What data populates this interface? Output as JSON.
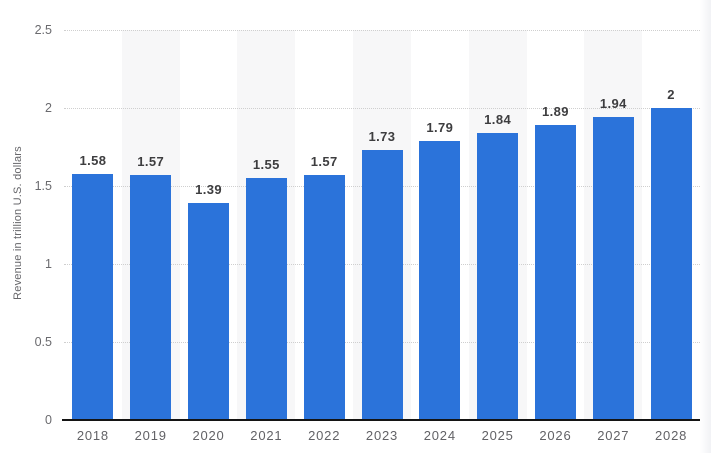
{
  "chart_data": {
    "type": "bar",
    "title": "",
    "xlabel": "",
    "ylabel": "Revenue in trillion U.S. dollars",
    "categories": [
      "2018",
      "2019",
      "2020",
      "2021",
      "2022",
      "2023",
      "2024",
      "2025",
      "2026",
      "2027",
      "2028"
    ],
    "values": [
      1.58,
      1.57,
      1.39,
      1.55,
      1.57,
      1.73,
      1.79,
      1.84,
      1.89,
      1.94,
      2
    ],
    "value_labels": [
      "1.58",
      "1.57",
      "1.39",
      "1.55",
      "1.57",
      "1.73",
      "1.79",
      "1.84",
      "1.89",
      "1.94",
      "2"
    ],
    "ylim": [
      0,
      2.5
    ],
    "yticks": [
      0,
      0.5,
      1,
      1.5,
      2,
      2.5
    ],
    "ytick_labels": [
      "0",
      "0.5",
      "1",
      "1.5",
      "2",
      "2.5"
    ],
    "grid": "horizontal dotted gridlines at each y tick",
    "legend": "none",
    "plot_bands": "alternating light-gray vertical column bands behind odd columns (2019, 2021, 2023, 2025, 2027)",
    "colors": {
      "bar": "#2b73da",
      "column_band": "#f7f7f8",
      "gridline": "#cfcfcf",
      "axis_line": "#141414",
      "value_label": "#3d3d3f",
      "tick_label": "#66666a"
    }
  }
}
